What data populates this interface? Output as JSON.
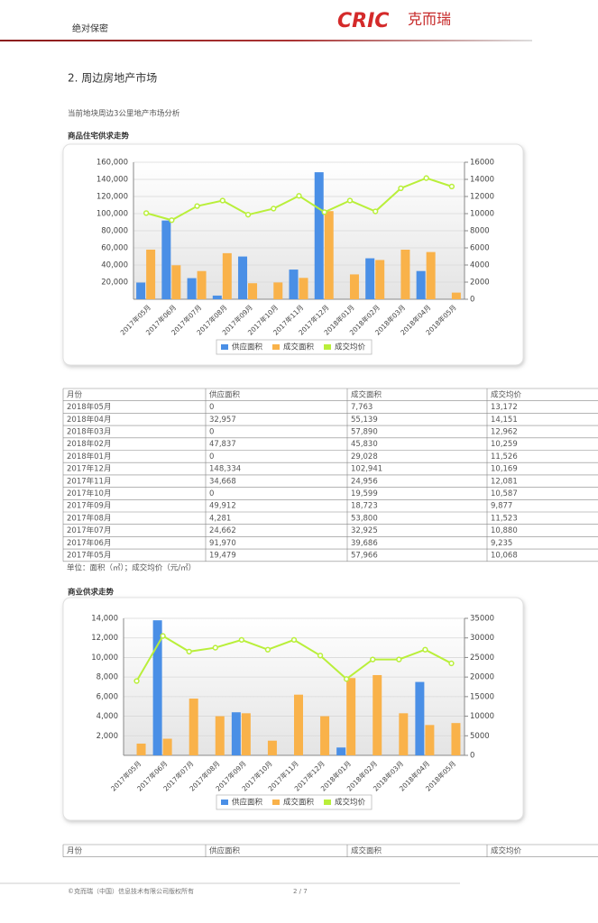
{
  "header": {
    "confidential": "绝对保密",
    "logo": "CRIC",
    "logo_name": "克而瑞"
  },
  "section_title": "2. 周边房地产市场",
  "intro": "当前地块周边3公里地产市场分析",
  "chart_data": [
    {
      "type": "combo",
      "title": "商品住宅供求走势",
      "categories": [
        "2017年05月",
        "2017年06月",
        "2017年07月",
        "2017年08月",
        "2017年09月",
        "2017年10月",
        "2017年11月",
        "2017年12月",
        "2018年01月",
        "2018年02月",
        "2018年03月",
        "2018年04月",
        "2018年05月"
      ],
      "series": [
        {
          "name": "供应面积",
          "type": "bar",
          "color": "#4a8fe6",
          "values": [
            19479,
            91970,
            24662,
            4281,
            49912,
            0,
            34668,
            148334,
            0,
            47837,
            0,
            32957,
            0
          ]
        },
        {
          "name": "成交面积",
          "type": "bar",
          "color": "#f9b24a",
          "values": [
            57966,
            39686,
            32925,
            53800,
            18723,
            19599,
            24956,
            102941,
            29028,
            45830,
            57890,
            55139,
            7763
          ]
        },
        {
          "name": "成交均价",
          "type": "line",
          "axis": "y2",
          "color": "#b9ef3a",
          "values": [
            10068,
            9235,
            10880,
            11523,
            9877,
            10587,
            12081,
            10169,
            11526,
            10259,
            12962,
            14151,
            13172
          ]
        }
      ],
      "ylim": [
        0,
        160000
      ],
      "yticks": [
        {
          "value": 20000,
          "label": "20,000"
        },
        {
          "value": 40000,
          "label": "40,000"
        },
        {
          "value": 60000,
          "label": "60,000"
        },
        {
          "value": 80000,
          "label": "80,000"
        },
        {
          "value": 100000,
          "label": "100,000"
        },
        {
          "value": 120000,
          "label": "120,000"
        },
        {
          "value": 140000,
          "label": "140,000"
        },
        {
          "value": 160000,
          "label": "160,000"
        }
      ],
      "y2lim": [
        0,
        16000
      ],
      "y2ticks": [
        0,
        2000,
        4000,
        6000,
        8000,
        10000,
        12000,
        14000,
        16000
      ],
      "grid": true,
      "legend": "bottom"
    },
    {
      "type": "combo",
      "title": "商业供求走势",
      "categories": [
        "2017年05月",
        "2017年06月",
        "2017年07月",
        "2017年08月",
        "2017年09月",
        "2017年10月",
        "2017年11月",
        "2017年12月",
        "2018年01月",
        "2018年02月",
        "2018年03月",
        "2018年04月",
        "2018年05月"
      ],
      "series": [
        {
          "name": "供应面积",
          "type": "bar",
          "color": "#4a8fe6",
          "values": [
            0,
            13800,
            0,
            0,
            4400,
            0,
            0,
            0,
            800,
            0,
            0,
            7500,
            0
          ]
        },
        {
          "name": "成交面积",
          "type": "bar",
          "color": "#f9b24a",
          "values": [
            1200,
            1700,
            5800,
            4000,
            4300,
            1500,
            6200,
            4000,
            7900,
            8200,
            4300,
            3100,
            3300
          ]
        },
        {
          "name": "成交均价",
          "type": "line",
          "axis": "y2",
          "color": "#b9ef3a",
          "values": [
            19000,
            30500,
            26500,
            27500,
            29500,
            27000,
            29500,
            25500,
            19500,
            24500,
            24500,
            27000,
            23500
          ]
        }
      ],
      "ylim": [
        0,
        14000
      ],
      "yticks": [
        {
          "value": 2000,
          "label": "2,000"
        },
        {
          "value": 4000,
          "label": "4,000"
        },
        {
          "value": 6000,
          "label": "6,000"
        },
        {
          "value": 8000,
          "label": "8,000"
        },
        {
          "value": 10000,
          "label": "10,000"
        },
        {
          "value": 12000,
          "label": "12,000"
        },
        {
          "value": 14000,
          "label": "14,000"
        }
      ],
      "y2lim": [
        0,
        35000
      ],
      "y2ticks": [
        0,
        5000,
        10000,
        15000,
        20000,
        25000,
        30000,
        35000
      ],
      "grid": true,
      "legend": "bottom"
    }
  ],
  "table1": {
    "columns": [
      "月份",
      "供应面积",
      "成交面积",
      "成交均价"
    ],
    "rows": [
      [
        "2018年05月",
        "0",
        "7,763",
        "13,172"
      ],
      [
        "2018年04月",
        "32,957",
        "55,139",
        "14,151"
      ],
      [
        "2018年03月",
        "0",
        "57,890",
        "12,962"
      ],
      [
        "2018年02月",
        "47,837",
        "45,830",
        "10,259"
      ],
      [
        "2018年01月",
        "0",
        "29,028",
        "11,526"
      ],
      [
        "2017年12月",
        "148,334",
        "102,941",
        "10,169"
      ],
      [
        "2017年11月",
        "34,668",
        "24,956",
        "12,081"
      ],
      [
        "2017年10月",
        "0",
        "19,599",
        "10,587"
      ],
      [
        "2017年09月",
        "49,912",
        "18,723",
        "9,877"
      ],
      [
        "2017年08月",
        "4,281",
        "53,800",
        "11,523"
      ],
      [
        "2017年07月",
        "24,662",
        "32,925",
        "10,880"
      ],
      [
        "2017年06月",
        "91,970",
        "39,686",
        "9,235"
      ],
      [
        "2017年05月",
        "19,479",
        "57,966",
        "10,068"
      ]
    ]
  },
  "note": "单位：面积（㎡）；成交均价（元/㎡）",
  "table2": {
    "columns": [
      "月份",
      "供应面积",
      "成交面积",
      "成交均价"
    ]
  },
  "footer": {
    "copyright": "©克而瑞（中国）信息技术有限公司版权所有",
    "page": "2 / 7"
  }
}
